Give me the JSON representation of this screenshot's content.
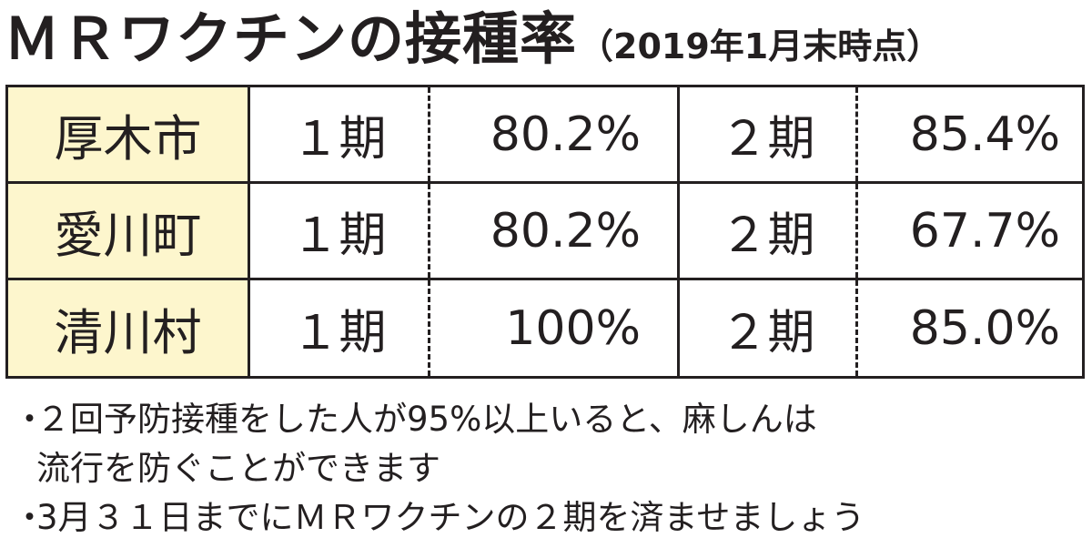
{
  "title": {
    "main": "ＭＲワクチンの接種率",
    "sub": "（2019年1月末時点）"
  },
  "table": {
    "rows": [
      {
        "municipality": "厚木市",
        "period1_label": "１期",
        "period1_value": "80.2%",
        "period2_label": "２期",
        "period2_value": "85.4%"
      },
      {
        "municipality": "愛川町",
        "period1_label": "１期",
        "period1_value": "80.2%",
        "period2_label": "２期",
        "period2_value": "67.7%"
      },
      {
        "municipality": "清川村",
        "period1_label": "１期",
        "period1_value": "100%",
        "period2_label": "２期",
        "period2_value": "85.0%"
      }
    ]
  },
  "notes": [
    {
      "bullet": "・",
      "lines": [
        "２回予防接種をした人が95%以上いると、麻しんは",
        "流行を防ぐことができます"
      ]
    },
    {
      "bullet": "・",
      "lines": [
        "3月３１日までにＭＲワクチンの２期を済ませましょう"
      ]
    }
  ],
  "colors": {
    "text": "#231f20",
    "header_cell_bg": "#fdf6cd",
    "border": "#231f20"
  }
}
